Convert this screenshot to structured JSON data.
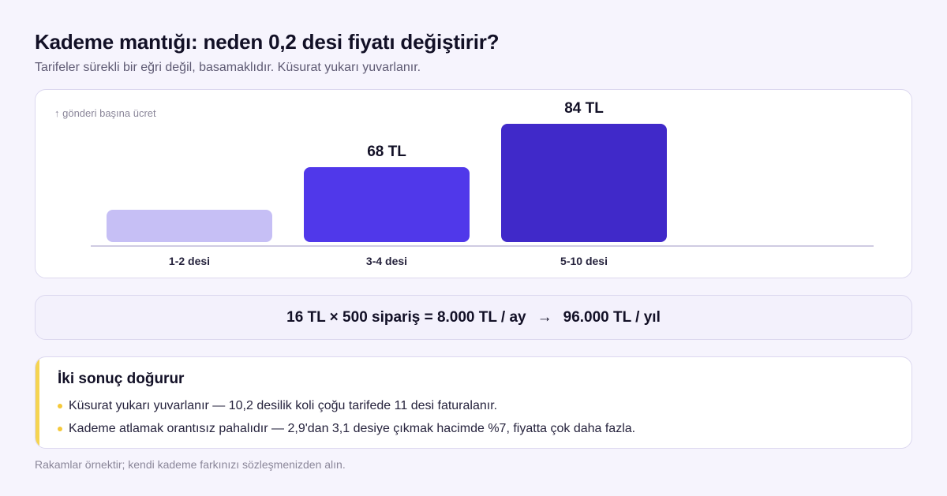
{
  "header": {
    "title": "Kademe mantığı: neden 0,2 desi fiyatı değiştirir?",
    "subtitle": "Tarifeler sürekli bir eğri değil, basamaklıdır. Küsurat yukarı yuvarlanır."
  },
  "chart_data": {
    "type": "bar",
    "title": "",
    "ylabel": "↑ gönderi başına ücret",
    "xlabel": "",
    "categories": [
      "1-2 desi",
      "3-4 desi",
      "5-10 desi"
    ],
    "values": [
      52,
      68,
      84
    ],
    "value_labels": [
      "",
      "68 TL",
      "84 TL"
    ],
    "unit": "TL",
    "ylim": [
      40,
      84
    ],
    "grid": false,
    "legend": "none",
    "colors": [
      "#c6bff5",
      "#5038ea",
      "#4029c9"
    ]
  },
  "formula": {
    "left": "16 TL × 500 sipariş = 8.000 TL / ay",
    "arrow": "→",
    "right": "96.000 TL / yıl"
  },
  "results": {
    "title": "İki sonuç doğurur",
    "items": [
      "Küsurat yukarı yuvarlanır — 10,2 desilik koli çoğu tarifede 11 desi faturalanır.",
      "Kademe atlamak orantısız pahalıdır — 2,9'dan 3,1 desiye çıkmak hacimde %7, fiyatta çok daha fazla."
    ],
    "accent_color": "#f5d451"
  },
  "footnote": "Rakamlar örnektir; kendi kademe farkınızı sözleşmenizden alın."
}
